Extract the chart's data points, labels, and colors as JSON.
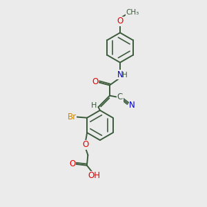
{
  "bg_color": "#ebebeb",
  "bond_color": "#3a5a3a",
  "bond_width": 1.4,
  "atom_colors": {
    "O": "#e60000",
    "N": "#0000cc",
    "Br": "#cc8800",
    "C": "#3a5a3a",
    "H": "#3a5a3a"
  },
  "font_size": 8.5,
  "dbl_sep": 0.07
}
